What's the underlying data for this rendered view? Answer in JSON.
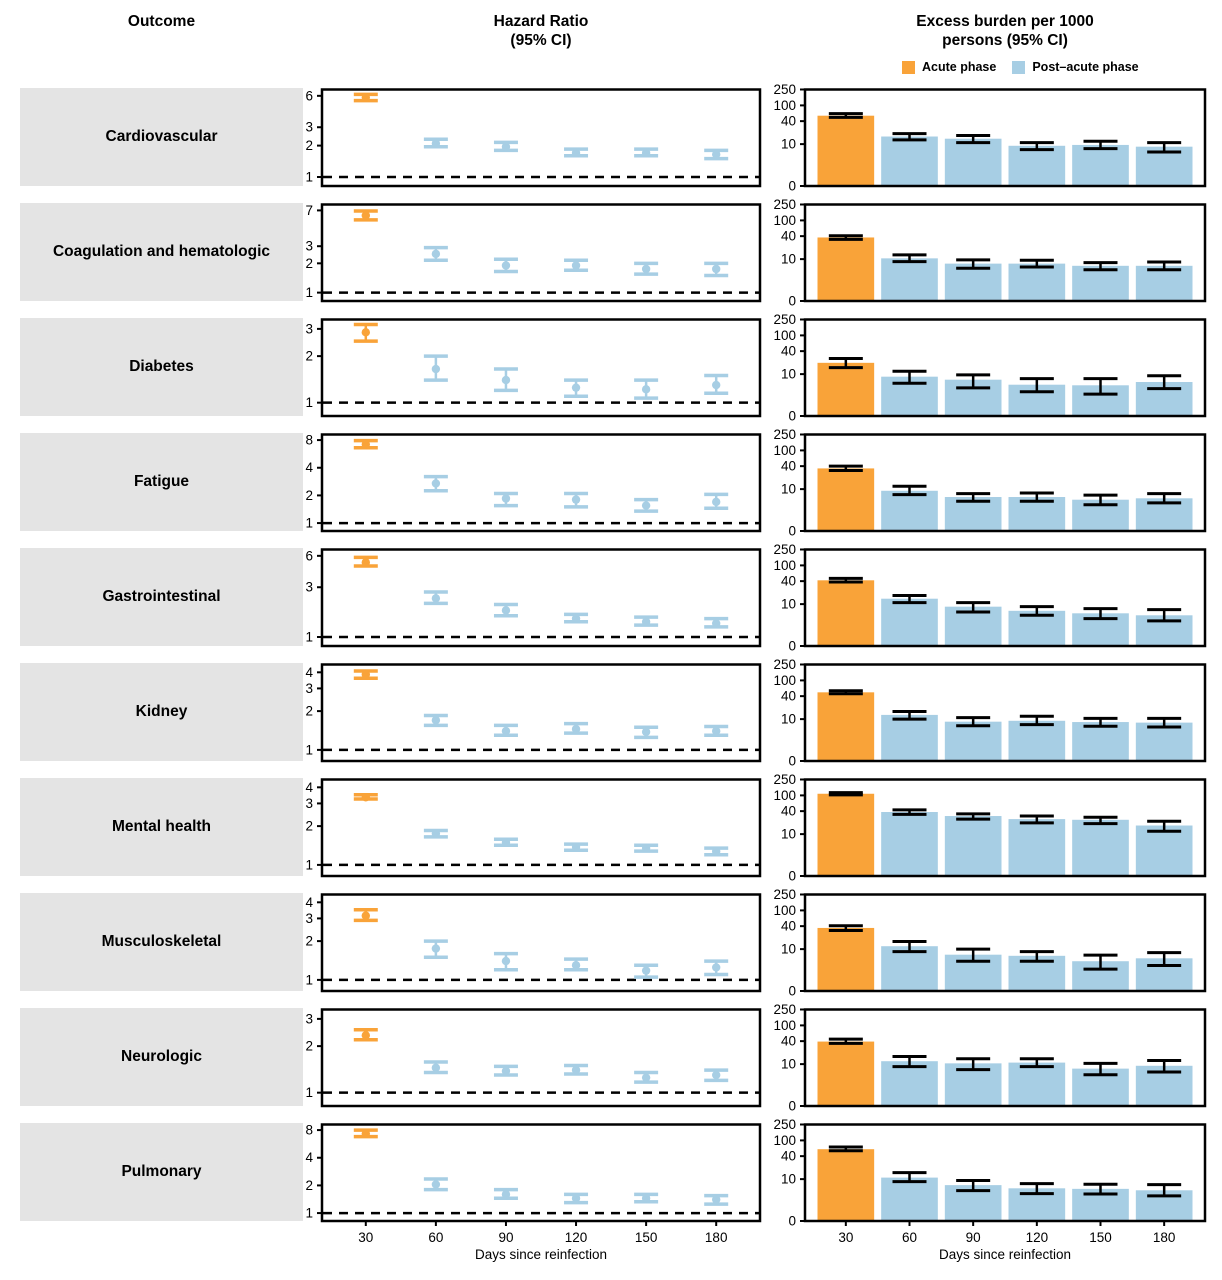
{
  "headers": {
    "outcome": "Outcome",
    "hazard_ratio": "Hazard Ratio\n(95% CI)",
    "excess_burden": "Excess burden per 1000\npersons (95% CI)"
  },
  "legend": {
    "acute_label": "Acute phase",
    "post_acute_label": "Post–acute phase"
  },
  "colors": {
    "acute": "#F9A339",
    "post_acute": "#A7CEE4",
    "label_bg": "#E4E4E4",
    "error_bar": "#000000",
    "reference_line": "#000000"
  },
  "x_axis": {
    "title": "Days since reinfection",
    "days": [
      30,
      60,
      90,
      120,
      150,
      180
    ]
  },
  "chart_data": {
    "type": "forest-plot-with-bars",
    "panels": [
      "Hazard Ratio (95% CI)",
      "Excess burden per 1000 persons (95% CI)"
    ],
    "x": [
      30,
      60,
      90,
      120,
      150,
      180
    ],
    "xlabel": "Days since reinfection",
    "hr_reference_line": 1,
    "hr_scale": "log",
    "burden_yticks": [
      0,
      10,
      40,
      100,
      250
    ],
    "series_note": "values are [estimate, ci_low, ci_high]; index 0 = acute phase (day 30), indexes 1-5 = post-acute phase",
    "outcomes": [
      {
        "name": "Cardiovascular",
        "hr_yticks": [
          1,
          2,
          3,
          6
        ],
        "hr": [
          [
            5.8,
            5.4,
            6.2
          ],
          [
            2.1,
            1.95,
            2.3
          ],
          [
            1.95,
            1.8,
            2.15
          ],
          [
            1.7,
            1.6,
            1.85
          ],
          [
            1.7,
            1.6,
            1.85
          ],
          [
            1.65,
            1.5,
            1.8
          ]
        ],
        "burden": [
          [
            55,
            50,
            62
          ],
          [
            16,
            13,
            19
          ],
          [
            14,
            11,
            17
          ],
          [
            9,
            7,
            11
          ],
          [
            9.5,
            7.5,
            12
          ],
          [
            8.5,
            6,
            11
          ]
        ]
      },
      {
        "name": "Coagulation and hematologic",
        "hr_yticks": [
          1,
          2,
          3,
          7
        ],
        "hr": [
          [
            6.2,
            5.6,
            6.9
          ],
          [
            2.5,
            2.15,
            2.9
          ],
          [
            1.9,
            1.65,
            2.2
          ],
          [
            1.9,
            1.7,
            2.15
          ],
          [
            1.75,
            1.55,
            2.0
          ],
          [
            1.75,
            1.5,
            2.0
          ]
        ],
        "burden": [
          [
            37,
            33,
            41
          ],
          [
            10.5,
            8.5,
            13
          ],
          [
            7.5,
            5.5,
            9.5
          ],
          [
            7.5,
            6,
            9.3
          ],
          [
            6.5,
            5,
            8
          ],
          [
            6.5,
            5,
            8.3
          ]
        ]
      },
      {
        "name": "Diabetes",
        "hr_yticks": [
          1,
          2,
          3
        ],
        "hr": [
          [
            2.85,
            2.5,
            3.2
          ],
          [
            1.65,
            1.4,
            2.0
          ],
          [
            1.4,
            1.2,
            1.65
          ],
          [
            1.25,
            1.1,
            1.4
          ],
          [
            1.22,
            1.07,
            1.4
          ],
          [
            1.3,
            1.15,
            1.5
          ]
        ],
        "burden": [
          [
            20,
            15,
            26
          ],
          [
            8.5,
            5.5,
            12
          ],
          [
            7,
            4,
            9.5
          ],
          [
            5,
            3,
            7.5
          ],
          [
            4.8,
            2.5,
            7.5
          ],
          [
            6,
            3.8,
            9
          ]
        ]
      },
      {
        "name": "Fatigue",
        "hr_yticks": [
          1,
          2,
          4,
          8
        ],
        "hr": [
          [
            7.2,
            6.6,
            7.9
          ],
          [
            2.7,
            2.25,
            3.2
          ],
          [
            1.85,
            1.55,
            2.1
          ],
          [
            1.8,
            1.5,
            2.1
          ],
          [
            1.55,
            1.35,
            1.8
          ],
          [
            1.7,
            1.45,
            2.05
          ]
        ],
        "burden": [
          [
            35,
            31,
            40
          ],
          [
            9,
            7,
            12
          ],
          [
            6,
            4.5,
            7.5
          ],
          [
            6,
            4.5,
            7.8
          ],
          [
            5,
            3.5,
            6.8
          ],
          [
            5.5,
            4,
            7.5
          ]
        ]
      },
      {
        "name": "Gastrointestinal",
        "hr_yticks": [
          1,
          3,
          6
        ],
        "hr": [
          [
            5.2,
            4.8,
            5.8
          ],
          [
            2.35,
            2.1,
            2.7
          ],
          [
            1.8,
            1.6,
            2.05
          ],
          [
            1.5,
            1.4,
            1.65
          ],
          [
            1.4,
            1.3,
            1.55
          ],
          [
            1.35,
            1.25,
            1.5
          ]
        ],
        "burden": [
          [
            42,
            38,
            47
          ],
          [
            14,
            11,
            17
          ],
          [
            8.5,
            6,
            11
          ],
          [
            6.5,
            4.8,
            8.5
          ],
          [
            5.5,
            3.8,
            7.5
          ],
          [
            4.8,
            3.2,
            7
          ]
        ]
      },
      {
        "name": "Kidney",
        "hr_yticks": [
          1,
          2,
          3,
          4
        ],
        "hr": [
          [
            3.85,
            3.6,
            4.1
          ],
          [
            1.7,
            1.55,
            1.85
          ],
          [
            1.4,
            1.3,
            1.55
          ],
          [
            1.45,
            1.35,
            1.6
          ],
          [
            1.38,
            1.25,
            1.5
          ],
          [
            1.4,
            1.3,
            1.52
          ]
        ],
        "burden": [
          [
            50,
            46,
            55
          ],
          [
            13,
            10,
            16
          ],
          [
            8.5,
            6.5,
            11
          ],
          [
            9,
            7,
            12
          ],
          [
            8.3,
            6.3,
            10.5
          ],
          [
            8,
            6,
            10.5
          ]
        ]
      },
      {
        "name": "Mental health",
        "hr_yticks": [
          1,
          2,
          3,
          4
        ],
        "hr": [
          [
            3.35,
            3.25,
            3.5
          ],
          [
            1.75,
            1.65,
            1.85
          ],
          [
            1.5,
            1.42,
            1.58
          ],
          [
            1.38,
            1.3,
            1.45
          ],
          [
            1.35,
            1.28,
            1.42
          ],
          [
            1.27,
            1.2,
            1.35
          ]
        ],
        "burden": [
          [
            110,
            103,
            117
          ],
          [
            38,
            33,
            43
          ],
          [
            30,
            25,
            34
          ],
          [
            25,
            20,
            30
          ],
          [
            24,
            19,
            28
          ],
          [
            17,
            12,
            22
          ]
        ]
      },
      {
        "name": "Musculoskeletal",
        "hr_yticks": [
          1,
          2,
          3,
          4
        ],
        "hr": [
          [
            3.15,
            2.9,
            3.5
          ],
          [
            1.75,
            1.5,
            2.0
          ],
          [
            1.4,
            1.2,
            1.6
          ],
          [
            1.3,
            1.2,
            1.45
          ],
          [
            1.18,
            1.05,
            1.3
          ],
          [
            1.25,
            1.1,
            1.4
          ]
        ],
        "burden": [
          [
            36,
            31,
            41
          ],
          [
            12,
            8.5,
            16
          ],
          [
            7,
            4.5,
            10
          ],
          [
            6.5,
            4.5,
            8.5
          ],
          [
            4.5,
            2.5,
            6.8
          ],
          [
            5.5,
            3.3,
            8
          ]
        ]
      },
      {
        "name": "Neurologic",
        "hr_yticks": [
          1,
          2,
          3
        ],
        "hr": [
          [
            2.35,
            2.2,
            2.55
          ],
          [
            1.45,
            1.35,
            1.58
          ],
          [
            1.38,
            1.3,
            1.48
          ],
          [
            1.4,
            1.32,
            1.5
          ],
          [
            1.25,
            1.17,
            1.35
          ],
          [
            1.3,
            1.2,
            1.4
          ]
        ],
        "burden": [
          [
            39,
            35,
            45
          ],
          [
            12,
            8.5,
            16
          ],
          [
            10.5,
            7,
            14
          ],
          [
            11,
            8.5,
            14
          ],
          [
            7.5,
            5,
            10.5
          ],
          [
            9,
            6,
            12.5
          ]
        ]
      },
      {
        "name": "Pulmonary",
        "hr_yticks": [
          1,
          2,
          4,
          8
        ],
        "hr": [
          [
            7.3,
            6.8,
            8.0
          ],
          [
            2.05,
            1.8,
            2.35
          ],
          [
            1.6,
            1.45,
            1.8
          ],
          [
            1.45,
            1.3,
            1.6
          ],
          [
            1.45,
            1.33,
            1.6
          ],
          [
            1.4,
            1.25,
            1.55
          ]
        ],
        "burden": [
          [
            60,
            55,
            68
          ],
          [
            11,
            8.5,
            15
          ],
          [
            6.8,
            4.7,
            9.2
          ],
          [
            5.5,
            3.8,
            7.5
          ],
          [
            5.3,
            3.7,
            7.2
          ],
          [
            4.8,
            3.2,
            7
          ]
        ]
      }
    ]
  }
}
